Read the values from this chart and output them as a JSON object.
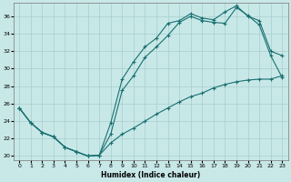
{
  "xlabel": "Humidex (Indice chaleur)",
  "xlim": [
    -0.5,
    23.5
  ],
  "ylim": [
    19.5,
    37.5
  ],
  "xticks": [
    0,
    1,
    2,
    3,
    4,
    5,
    6,
    7,
    8,
    9,
    10,
    11,
    12,
    13,
    14,
    15,
    16,
    17,
    18,
    19,
    20,
    21,
    22,
    23
  ],
  "yticks": [
    20,
    22,
    24,
    26,
    28,
    30,
    32,
    34,
    36
  ],
  "bg_color": "#c8e8e8",
  "grid_color": "#a8cece",
  "line_color": "#1a7070",
  "line1_x": [
    0,
    1,
    2,
    3,
    4,
    5,
    6,
    7,
    8,
    9,
    10,
    11,
    12,
    13,
    14,
    15,
    16,
    17,
    18,
    19,
    20,
    21,
    22,
    23
  ],
  "line1_y": [
    25.5,
    23.8,
    22.7,
    22.2,
    21.0,
    20.5,
    20.0,
    20.1,
    22.5,
    27.5,
    29.2,
    31.3,
    32.5,
    33.8,
    35.3,
    36.0,
    35.5,
    35.3,
    35.2,
    37.0,
    36.1,
    35.0,
    31.5,
    29.0
  ],
  "line2_x": [
    0,
    1,
    2,
    3,
    4,
    5,
    6,
    7,
    8,
    9,
    10,
    11,
    12,
    13,
    14,
    15,
    16,
    17,
    18,
    19,
    20,
    21,
    22,
    23
  ],
  "line2_y": [
    25.5,
    23.8,
    22.7,
    22.2,
    21.0,
    20.5,
    20.0,
    20.1,
    23.8,
    28.8,
    30.8,
    32.5,
    33.5,
    35.2,
    35.5,
    36.3,
    35.8,
    35.6,
    36.5,
    37.2,
    36.0,
    35.5,
    32.0,
    31.5
  ],
  "line3_x": [
    0,
    1,
    2,
    3,
    4,
    5,
    6,
    7,
    8,
    9,
    10,
    11,
    12,
    13,
    14,
    15,
    16,
    17,
    18,
    19,
    20,
    21,
    22,
    23
  ],
  "line3_y": [
    25.5,
    23.8,
    22.7,
    22.2,
    21.0,
    20.5,
    20.0,
    20.1,
    21.5,
    22.5,
    23.2,
    24.0,
    24.8,
    25.5,
    26.2,
    26.8,
    27.2,
    27.8,
    28.2,
    28.5,
    28.7,
    28.8,
    28.8,
    29.2
  ]
}
